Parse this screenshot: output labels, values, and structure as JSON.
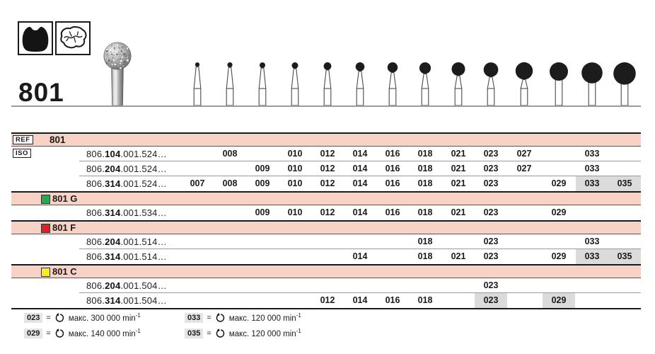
{
  "header": {
    "figure_number": "801",
    "application_icons": [
      {
        "name": "cavity-prep-icon"
      },
      {
        "name": "occlusal-surface-icon"
      }
    ]
  },
  "size_columns": [
    "007",
    "008",
    "009",
    "010",
    "012",
    "014",
    "016",
    "018",
    "021",
    "023",
    "027",
    "029",
    "033",
    "035"
  ],
  "bur_diagram": {
    "shank_types": [
      "latch",
      "latch",
      "latch",
      "latch",
      "latch",
      "latch",
      "latch",
      "latch",
      "latch",
      "latch",
      "latch",
      "fg",
      "fg",
      "fg"
    ],
    "ball_sizes_mm": [
      0.7,
      0.8,
      0.9,
      1.0,
      1.2,
      1.4,
      1.6,
      1.8,
      2.1,
      2.3,
      2.7,
      2.9,
      3.3,
      3.5
    ]
  },
  "table": {
    "ref_label": "REF",
    "ref_value": "801",
    "iso_label": "ISO",
    "sections": [
      {
        "variant": null,
        "rows": [
          {
            "iso_prefix": "806.",
            "iso_bold": "104",
            "iso_rest": ".001.524…",
            "sizes": [
              "008",
              "010",
              "012",
              "014",
              "016",
              "018",
              "021",
              "023",
              "027",
              "033"
            ],
            "highlighted": []
          },
          {
            "iso_prefix": "806.",
            "iso_bold": "204",
            "iso_rest": ".001.524…",
            "sizes": [
              "009",
              "010",
              "012",
              "014",
              "016",
              "018",
              "021",
              "023",
              "027",
              "033"
            ],
            "highlighted": []
          },
          {
            "iso_prefix": "806.",
            "iso_bold": "314",
            "iso_rest": ".001.524…",
            "sizes": [
              "007",
              "008",
              "009",
              "010",
              "012",
              "014",
              "016",
              "018",
              "021",
              "023",
              "029",
              "033",
              "035"
            ],
            "highlighted": [
              "033",
              "035"
            ]
          }
        ]
      },
      {
        "variant": {
          "label": "801 G",
          "square_color": "#28a652"
        },
        "rows": [
          {
            "iso_prefix": "806.",
            "iso_bold": "314",
            "iso_rest": ".001.534…",
            "sizes": [
              "009",
              "010",
              "012",
              "014",
              "016",
              "018",
              "021",
              "023",
              "029"
            ],
            "highlighted": []
          }
        ]
      },
      {
        "variant": {
          "label": "801 F",
          "square_color": "#e51d25"
        },
        "rows": [
          {
            "iso_prefix": "806.",
            "iso_bold": "204",
            "iso_rest": ".001.514…",
            "sizes": [
              "018",
              "023",
              "033"
            ],
            "highlighted": []
          },
          {
            "iso_prefix": "806.",
            "iso_bold": "314",
            "iso_rest": ".001.514…",
            "sizes": [
              "014",
              "018",
              "021",
              "023",
              "029",
              "033",
              "035"
            ],
            "highlighted": [
              "033",
              "035"
            ]
          }
        ]
      },
      {
        "variant": {
          "label": "801 C",
          "square_color": "#fdeb1a"
        },
        "rows": [
          {
            "iso_prefix": "806.",
            "iso_bold": "204",
            "iso_rest": ".001.504…",
            "sizes": [
              "023"
            ],
            "highlighted": []
          },
          {
            "iso_prefix": "806.",
            "iso_bold": "314",
            "iso_rest": ".001.504…",
            "sizes": [
              "012",
              "014",
              "016",
              "018",
              "023",
              "029"
            ],
            "highlighted": [
              "023",
              "029"
            ]
          }
        ]
      }
    ]
  },
  "legend": {
    "columns": [
      [
        {
          "code": "023",
          "label": "макс. 300 000 min",
          "sup": "-1"
        },
        {
          "code": "029",
          "label": "макс. 140 000 min",
          "sup": "-1"
        }
      ],
      [
        {
          "code": "033",
          "label": "макс. 120 000 min",
          "sup": "-1"
        },
        {
          "code": "035",
          "label": "макс. 120 000 min",
          "sup": "-1"
        }
      ]
    ]
  },
  "colors": {
    "band_pink": "#f8d3c5",
    "highlight_gray": "#dbdbdb",
    "legend_code_gray": "#e4e4e4"
  }
}
